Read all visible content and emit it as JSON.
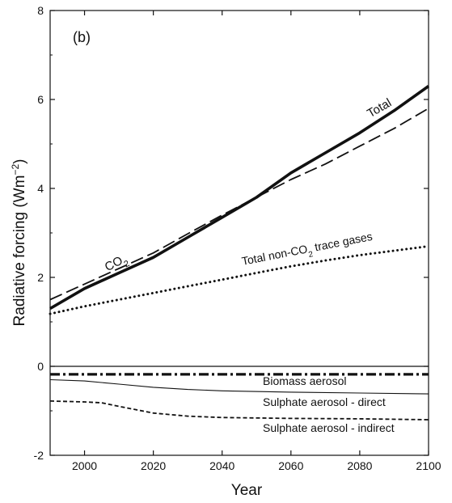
{
  "chart_data": {
    "type": "line",
    "panel_label": "(b)",
    "xlabel": "Year",
    "ylabel": "Radiative forcing (Wm",
    "ylabel_sup": "−2",
    "ylabel_close": ")",
    "xlim": [
      1990,
      2100
    ],
    "ylim": [
      -2,
      8
    ],
    "xticks": [
      2000,
      2020,
      2040,
      2060,
      2080,
      2100
    ],
    "yticks": [
      -2,
      0,
      2,
      4,
      6,
      8
    ],
    "series": [
      {
        "name": "Total",
        "style": "thick-solid",
        "x": [
          1990,
          2000,
          2010,
          2020,
          2030,
          2040,
          2050,
          2060,
          2070,
          2080,
          2090,
          2100
        ],
        "y": [
          1.3,
          1.75,
          2.1,
          2.45,
          2.9,
          3.35,
          3.8,
          4.35,
          4.8,
          5.25,
          5.75,
          6.3
        ]
      },
      {
        "name": "CO2",
        "style": "dashed",
        "x": [
          1990,
          2000,
          2010,
          2020,
          2030,
          2040,
          2050,
          2060,
          2070,
          2080,
          2090,
          2100
        ],
        "y": [
          1.5,
          1.85,
          2.2,
          2.55,
          2.98,
          3.4,
          3.8,
          4.2,
          4.55,
          4.95,
          5.35,
          5.8
        ]
      },
      {
        "name": "Total non-CO2 trace gases",
        "style": "dotted",
        "x": [
          1990,
          2000,
          2010,
          2020,
          2030,
          2040,
          2050,
          2060,
          2070,
          2080,
          2090,
          2100
        ],
        "y": [
          1.18,
          1.35,
          1.5,
          1.65,
          1.8,
          1.95,
          2.1,
          2.25,
          2.38,
          2.5,
          2.6,
          2.7
        ]
      },
      {
        "name": "Biomass aerosol",
        "style": "dash-dot",
        "x": [
          1990,
          2000,
          2020,
          2040,
          2060,
          2080,
          2100
        ],
        "y": [
          -0.18,
          -0.18,
          -0.18,
          -0.18,
          -0.18,
          -0.18,
          -0.18
        ]
      },
      {
        "name": "Sulphate aerosol - direct",
        "style": "thin-solid",
        "x": [
          1990,
          2000,
          2010,
          2020,
          2030,
          2040,
          2060,
          2080,
          2100
        ],
        "y": [
          -0.3,
          -0.33,
          -0.4,
          -0.47,
          -0.52,
          -0.55,
          -0.58,
          -0.6,
          -0.62
        ]
      },
      {
        "name": "Sulphate aerosol - indirect",
        "style": "short-dash",
        "x": [
          1990,
          2000,
          2005,
          2010,
          2020,
          2030,
          2040,
          2060,
          2080,
          2100
        ],
        "y": [
          -0.78,
          -0.8,
          -0.82,
          -0.9,
          -1.05,
          -1.12,
          -1.15,
          -1.17,
          -1.18,
          -1.2
        ]
      }
    ],
    "annotations": {
      "total": "Total",
      "co2_main": "CO",
      "co2_sub": "2",
      "nonco2_pre": "Total non-CO",
      "nonco2_sub": "2",
      "nonco2_post": " trace gases",
      "biomass": "Biomass aerosol",
      "sulph_direct": "Sulphate aerosol - direct",
      "sulph_indirect": "Sulphate aerosol - indirect"
    },
    "zero_line": true,
    "grid": false
  }
}
